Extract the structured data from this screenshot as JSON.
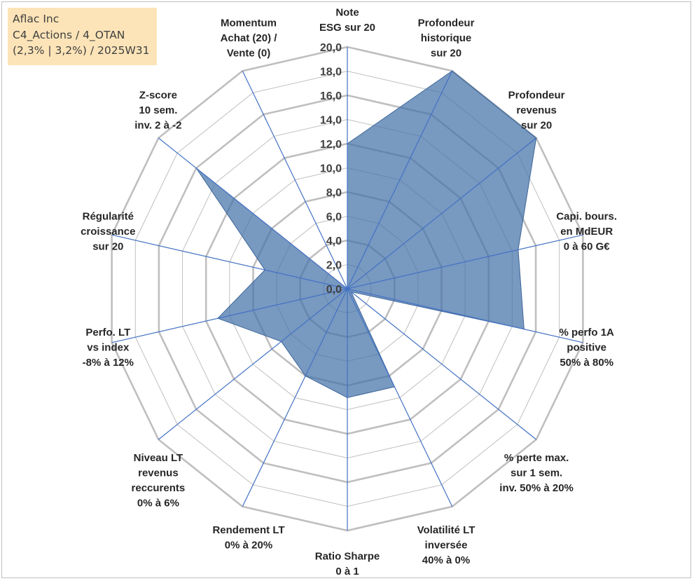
{
  "title_box": {
    "line1": "Aflac Inc",
    "line2": "C4_Actions / 4_OTAN",
    "line3": "(2,3% | 3,2%) / 2025W31"
  },
  "chart_data": {
    "type": "radar",
    "axes": [
      {
        "label": [
          "Note",
          "ESG sur 20"
        ],
        "value": 12.0
      },
      {
        "label": [
          "Profondeur",
          "historique",
          "sur 20"
        ],
        "value": 20.0
      },
      {
        "label": [
          "Profondeur",
          "revenus",
          "sur 20"
        ],
        "value": 20.0
      },
      {
        "label": [
          "Capi. bours.",
          "en MdEUR",
          "0 à 60 G€"
        ],
        "value": 14.5
      },
      {
        "label": [
          "% perfo 1A",
          "positive",
          "50% à 80%"
        ],
        "value": 15.0
      },
      {
        "label": [
          "% perte max.",
          "sur 1 sem.",
          "inv. 50% à 20%"
        ],
        "value": 0.4
      },
      {
        "label": [
          "Volatilité LT",
          "inversée",
          "40% à 0%"
        ],
        "value": 9.0
      },
      {
        "label": [
          "Ratio Sharpe",
          "0 à 1"
        ],
        "value": 9.0
      },
      {
        "label": [
          "Rendement LT",
          "0% à 20%"
        ],
        "value": 8.0
      },
      {
        "label": [
          "Niveau LT",
          "revenus",
          "reccurents",
          "0% à 6%"
        ],
        "value": 7.0
      },
      {
        "label": [
          "Perfo. LT",
          "vs index",
          "-8% à 12%"
        ],
        "value": 11.0
      },
      {
        "label": [
          "Régularité",
          "croissance",
          "sur 20"
        ],
        "value": 7.0
      },
      {
        "label": [
          "Z-score",
          "10 sem.",
          "inv. 2 à -2"
        ],
        "value": 16.0
      },
      {
        "label": [
          "Momentum",
          "Achat (20) /",
          "Vente (0)"
        ],
        "value": 0.0
      }
    ],
    "r_ticks": [
      "0,0",
      "2,0",
      "4,0",
      "6,0",
      "8,0",
      "10,0",
      "12,0",
      "14,0",
      "16,0",
      "18,0",
      "20,0"
    ],
    "r_range": [
      0,
      20
    ],
    "fill_color": "#4472a8",
    "grid_color": "#bfbfbf",
    "spoke_color": "#4472c4"
  }
}
